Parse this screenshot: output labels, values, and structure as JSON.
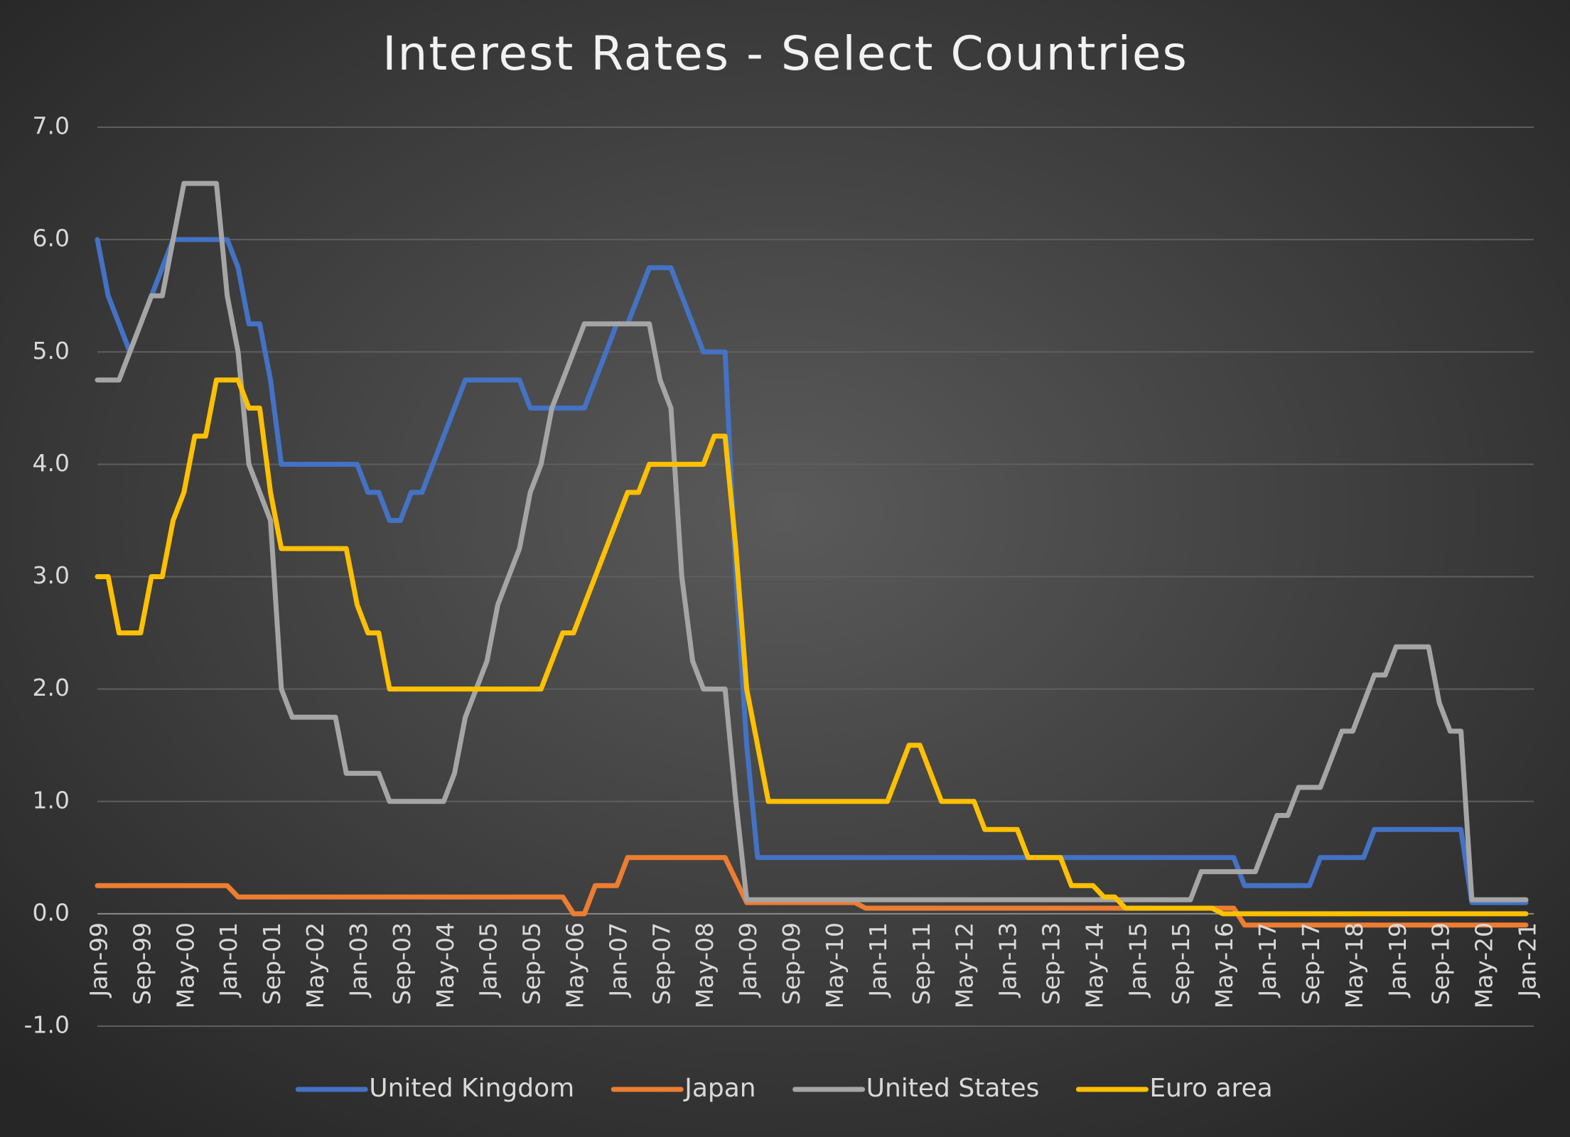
{
  "chart_data": {
    "type": "line",
    "title": "Interest Rates - Select Countries",
    "categories": [
      "Jan-99",
      null,
      null,
      null,
      "Sep-99",
      null,
      null,
      null,
      "May-00",
      null,
      null,
      null,
      "Jan-01",
      null,
      null,
      null,
      "Sep-01",
      null,
      null,
      null,
      "May-02",
      null,
      null,
      null,
      "Jan-03",
      null,
      null,
      null,
      "Sep-03",
      null,
      null,
      null,
      "May-04",
      null,
      null,
      null,
      "Jan-05",
      null,
      null,
      null,
      "Sep-05",
      null,
      null,
      null,
      "May-06",
      null,
      null,
      null,
      "Jan-07",
      null,
      null,
      null,
      "Sep-07",
      null,
      null,
      null,
      "May-08",
      null,
      null,
      null,
      "Jan-09",
      null,
      null,
      null,
      "Sep-09",
      null,
      null,
      null,
      "May-10",
      null,
      null,
      null,
      "Jan-11",
      null,
      null,
      null,
      "Sep-11",
      null,
      null,
      null,
      "May-12",
      null,
      null,
      null,
      "Jan-13",
      null,
      null,
      null,
      "Sep-13",
      null,
      null,
      null,
      "May-14",
      null,
      null,
      null,
      "Jan-15",
      null,
      null,
      null,
      "Sep-15",
      null,
      null,
      null,
      "May-16",
      null,
      null,
      null,
      "Jan-17",
      null,
      null,
      null,
      "Sep-17",
      null,
      null,
      null,
      "May-18",
      null,
      null,
      null,
      "Jan-19",
      null,
      null,
      null,
      "Sep-19",
      null,
      null,
      null,
      "May-20",
      null,
      null,
      null,
      "Jan-21"
    ],
    "series": [
      {
        "name": "United Kingdom",
        "color": "#4472c4",
        "values": [
          6.0,
          5.5,
          5.25,
          5.0,
          5.25,
          5.5,
          5.75,
          6.0,
          6.0,
          6.0,
          6.0,
          6.0,
          6.0,
          5.75,
          5.25,
          5.25,
          4.75,
          4.0,
          4.0,
          4.0,
          4.0,
          4.0,
          4.0,
          4.0,
          4.0,
          3.75,
          3.75,
          3.5,
          3.5,
          3.75,
          3.75,
          4.0,
          4.25,
          4.5,
          4.75,
          4.75,
          4.75,
          4.75,
          4.75,
          4.75,
          4.5,
          4.5,
          4.5,
          4.5,
          4.5,
          4.5,
          4.75,
          5.0,
          5.25,
          5.25,
          5.5,
          5.75,
          5.75,
          5.75,
          5.5,
          5.25,
          5.0,
          5.0,
          5.0,
          3.0,
          1.5,
          0.5,
          0.5,
          0.5,
          0.5,
          0.5,
          0.5,
          0.5,
          0.5,
          0.5,
          0.5,
          0.5,
          0.5,
          0.5,
          0.5,
          0.5,
          0.5,
          0.5,
          0.5,
          0.5,
          0.5,
          0.5,
          0.5,
          0.5,
          0.5,
          0.5,
          0.5,
          0.5,
          0.5,
          0.5,
          0.5,
          0.5,
          0.5,
          0.5,
          0.5,
          0.5,
          0.5,
          0.5,
          0.5,
          0.5,
          0.5,
          0.5,
          0.5,
          0.5,
          0.5,
          0.5,
          0.25,
          0.25,
          0.25,
          0.25,
          0.25,
          0.25,
          0.25,
          0.5,
          0.5,
          0.5,
          0.5,
          0.5,
          0.75,
          0.75,
          0.75,
          0.75,
          0.75,
          0.75,
          0.75,
          0.75,
          0.75,
          0.1,
          0.1,
          0.1,
          0.1,
          0.1,
          0.1
        ]
      },
      {
        "name": "Japan",
        "color": "#ed7d31",
        "values": [
          0.25,
          0.25,
          0.25,
          0.25,
          0.25,
          0.25,
          0.25,
          0.25,
          0.25,
          0.25,
          0.25,
          0.25,
          0.25,
          0.15,
          0.15,
          0.15,
          0.15,
          0.15,
          0.15,
          0.15,
          0.15,
          0.15,
          0.15,
          0.15,
          0.15,
          0.15,
          0.15,
          0.15,
          0.15,
          0.15,
          0.15,
          0.15,
          0.15,
          0.15,
          0.15,
          0.15,
          0.15,
          0.15,
          0.15,
          0.15,
          0.15,
          0.15,
          0.15,
          0.15,
          0,
          0,
          0.25,
          0.25,
          0.25,
          0.5,
          0.5,
          0.5,
          0.5,
          0.5,
          0.5,
          0.5,
          0.5,
          0.5,
          0.5,
          0.3,
          0.1,
          0.1,
          0.1,
          0.1,
          0.1,
          0.1,
          0.1,
          0.1,
          0.1,
          0.1,
          0.1,
          0.05,
          0.05,
          0.05,
          0.05,
          0.05,
          0.05,
          0.05,
          0.05,
          0.05,
          0.05,
          0.05,
          0.05,
          0.05,
          0.05,
          0.05,
          0.05,
          0.05,
          0.05,
          0.05,
          0.05,
          0.05,
          0.05,
          0.05,
          0.05,
          0.05,
          0.05,
          0.05,
          0.05,
          0.05,
          0.05,
          0.05,
          0.05,
          0.05,
          0.05,
          0.05,
          -0.1,
          -0.1,
          -0.1,
          -0.1,
          -0.1,
          -0.1,
          -0.1,
          -0.1,
          -0.1,
          -0.1,
          -0.1,
          -0.1,
          -0.1,
          -0.1,
          -0.1,
          -0.1,
          -0.1,
          -0.1,
          -0.1,
          -0.1,
          -0.1,
          -0.1,
          -0.1,
          -0.1,
          -0.1,
          -0.1,
          -0.1
        ]
      },
      {
        "name": "United States",
        "color": "#a5a5a5",
        "values": [
          4.75,
          4.75,
          4.75,
          5.0,
          5.25,
          5.5,
          5.5,
          6.0,
          6.5,
          6.5,
          6.5,
          6.5,
          5.5,
          5.0,
          4.0,
          3.75,
          3.5,
          2.0,
          1.75,
          1.75,
          1.75,
          1.75,
          1.75,
          1.25,
          1.25,
          1.25,
          1.25,
          1.0,
          1.0,
          1.0,
          1.0,
          1.0,
          1.0,
          1.25,
          1.75,
          2.0,
          2.25,
          2.75,
          3.0,
          3.25,
          3.75,
          4.0,
          4.5,
          4.75,
          5.0,
          5.25,
          5.25,
          5.25,
          5.25,
          5.25,
          5.25,
          5.25,
          4.75,
          4.5,
          3.0,
          2.25,
          2.0,
          2.0,
          2.0,
          1.0,
          0.125,
          0.125,
          0.125,
          0.125,
          0.125,
          0.125,
          0.125,
          0.125,
          0.125,
          0.125,
          0.125,
          0.125,
          0.125,
          0.125,
          0.125,
          0.125,
          0.125,
          0.125,
          0.125,
          0.125,
          0.125,
          0.125,
          0.125,
          0.125,
          0.125,
          0.125,
          0.125,
          0.125,
          0.125,
          0.125,
          0.125,
          0.125,
          0.125,
          0.125,
          0.125,
          0.125,
          0.125,
          0.125,
          0.125,
          0.125,
          0.125,
          0.125,
          0.375,
          0.375,
          0.375,
          0.375,
          0.375,
          0.375,
          0.625,
          0.875,
          0.875,
          1.125,
          1.125,
          1.125,
          1.375,
          1.625,
          1.625,
          1.875,
          2.125,
          2.125,
          2.375,
          2.375,
          2.375,
          2.375,
          1.875,
          1.625,
          1.625,
          0.125,
          0.125,
          0.125,
          0.125,
          0.125,
          0.125
        ]
      },
      {
        "name": "Euro area",
        "color": "#ffc000",
        "values": [
          3.0,
          3.0,
          2.5,
          2.5,
          2.5,
          3.0,
          3.0,
          3.5,
          3.75,
          4.25,
          4.25,
          4.75,
          4.75,
          4.75,
          4.5,
          4.5,
          3.75,
          3.25,
          3.25,
          3.25,
          3.25,
          3.25,
          3.25,
          3.25,
          2.75,
          2.5,
          2.5,
          2.0,
          2.0,
          2.0,
          2.0,
          2.0,
          2.0,
          2.0,
          2.0,
          2.0,
          2.0,
          2.0,
          2.0,
          2.0,
          2.0,
          2.0,
          2.25,
          2.5,
          2.5,
          2.75,
          3.0,
          3.25,
          3.5,
          3.75,
          3.75,
          4.0,
          4.0,
          4.0,
          4.0,
          4.0,
          4.0,
          4.25,
          4.25,
          3.25,
          2.0,
          1.5,
          1.0,
          1.0,
          1.0,
          1.0,
          1.0,
          1.0,
          1.0,
          1.0,
          1.0,
          1.0,
          1.0,
          1.0,
          1.25,
          1.5,
          1.5,
          1.25,
          1.0,
          1.0,
          1.0,
          1.0,
          0.75,
          0.75,
          0.75,
          0.75,
          0.5,
          0.5,
          0.5,
          0.5,
          0.25,
          0.25,
          0.25,
          0.15,
          0.15,
          0.05,
          0.05,
          0.05,
          0.05,
          0.05,
          0.05,
          0.05,
          0.05,
          0.05,
          0,
          0,
          0,
          0,
          0,
          0,
          0,
          0,
          0,
          0,
          0,
          0,
          0,
          0,
          0,
          0,
          0,
          0,
          0,
          0,
          0,
          0,
          0,
          0,
          0,
          0,
          0,
          0,
          0
        ]
      }
    ],
    "ylim": [
      -1,
      7
    ],
    "yticks": [
      {
        "value": -1,
        "label": "-1.0"
      },
      {
        "value": 0,
        "label": "0.0"
      },
      {
        "value": 1,
        "label": "1.0"
      },
      {
        "value": 2,
        "label": "2.0"
      },
      {
        "value": 3,
        "label": "3.0"
      },
      {
        "value": 4,
        "label": "4.0"
      },
      {
        "value": 5,
        "label": "5.0"
      },
      {
        "value": 6,
        "label": "6.0"
      },
      {
        "value": 7,
        "label": "7.0"
      }
    ],
    "grid": true,
    "legend": "bottom"
  }
}
